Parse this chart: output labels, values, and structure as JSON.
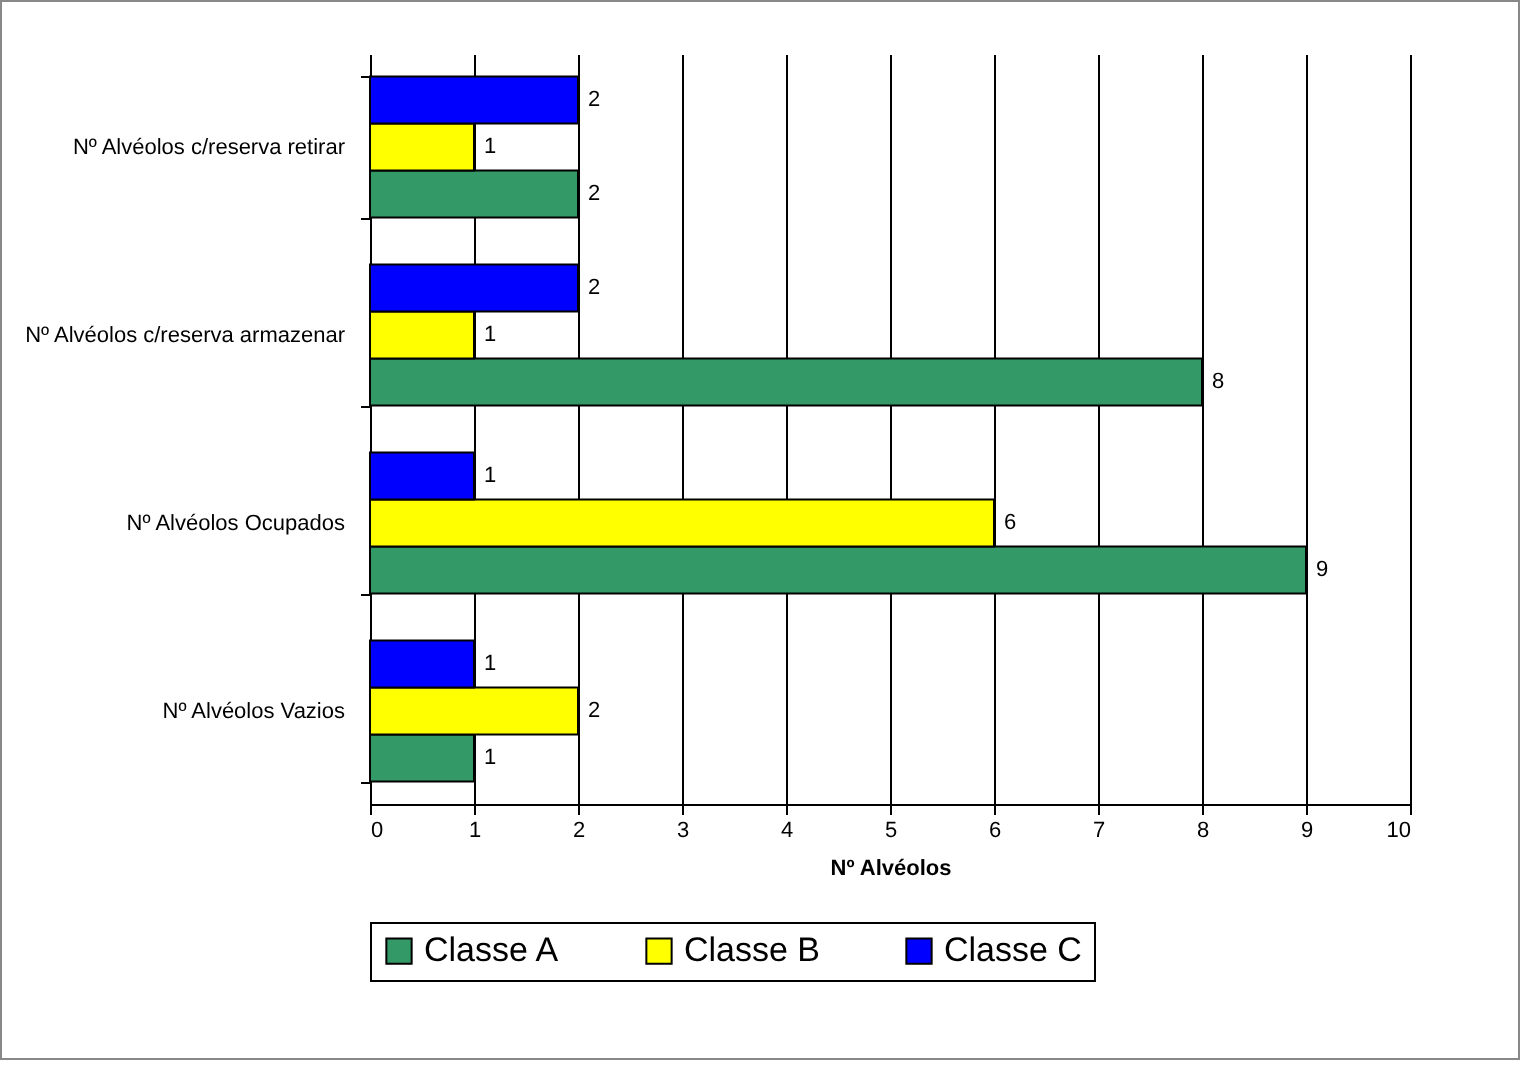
{
  "chart_data": {
    "type": "bar",
    "orientation": "horizontal",
    "xlabel": "Nº Alvéolos",
    "categories": [
      "Nº Alvéolos c/reserva retirar",
      "Nº Alvéolos c/reserva armazenar",
      "Nº Alvéolos Ocupados",
      "Nº Alvéolos Vazios"
    ],
    "series": [
      {
        "name": "Classe A",
        "color": "#339966",
        "values": [
          2,
          8,
          9,
          1
        ]
      },
      {
        "name": "Classe B",
        "color": "#ffff00",
        "values": [
          1,
          1,
          6,
          2
        ]
      },
      {
        "name": "Classe C",
        "color": "#0000ff",
        "values": [
          2,
          2,
          1,
          1
        ]
      }
    ],
    "xlim": [
      0,
      10
    ],
    "xticks": [
      0,
      1,
      2,
      3,
      4,
      5,
      6,
      7,
      8,
      9,
      10
    ],
    "grid": "x",
    "legend": "bottom",
    "data_labels": true
  }
}
